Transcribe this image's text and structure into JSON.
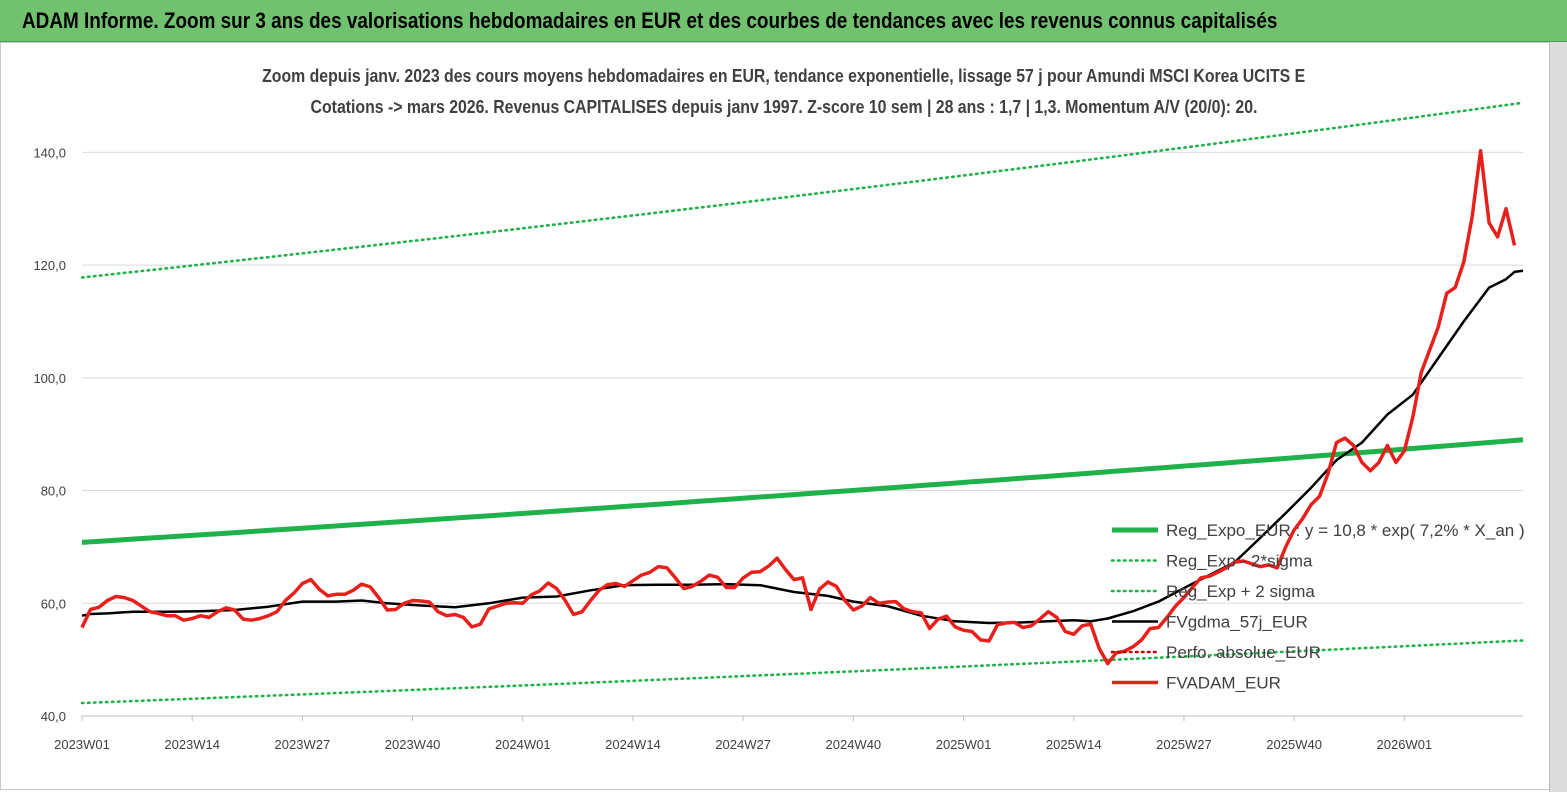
{
  "header": {
    "banner_title": "ADAM Informe. Zoom sur 3 ans des valorisations hebdomadaires en EUR et des courbes de tendances avec les revenus connus capitalisés"
  },
  "chart_data": {
    "type": "line",
    "title_line1": "Zoom depuis janv. 2023 des cours moyens hebdomadaires en EUR, tendance exponentielle, lissage 57 j pour Amundi MSCI Korea UCITS E",
    "title_line2": "Cotations -> mars 2026. Revenus CAPITALISES depuis janv 1997. Z-score 10 sem | 28 ans : 1,7 | 1,3. Momentum A/V (20/0): 20.",
    "x_tick_labels": [
      "2023W01",
      "2023W14",
      "2023W27",
      "2023W40",
      "2024W01",
      "2024W14",
      "2024W27",
      "2024W40",
      "2025W01",
      "2025W14",
      "2025W27",
      "2025W40",
      "2026W01"
    ],
    "x_tick_index": [
      0,
      13,
      26,
      39,
      52,
      65,
      78,
      91,
      104,
      117,
      130,
      143,
      156
    ],
    "n_points": 170,
    "ylim": [
      40,
      150
    ],
    "y_ticks": [
      40,
      60,
      80,
      100,
      120,
      140
    ],
    "y_tick_labels": [
      "40,0",
      "60,0",
      "80,0",
      "100,0",
      "120,0",
      "140,0"
    ],
    "grid": "horizontal",
    "legend_position": "right",
    "series": [
      {
        "name": "Reg_Expo_EUR : y = 10,8 * exp( 7,2% *  X_an )",
        "style": "solid",
        "color": "#1fb24a",
        "start": 70.8,
        "end": 89.0
      },
      {
        "name": "Reg_Exp - 2*sigma",
        "style": "dotted",
        "color": "#1fb24a",
        "start": 42.3,
        "end": 53.4
      },
      {
        "name": "Reg_Exp + 2 sigma",
        "style": "dotted",
        "color": "#1fb24a",
        "start": 117.8,
        "end": 148.8
      },
      {
        "name": "FVgdma_57j_EUR",
        "style": "solid",
        "color": "#000000",
        "points": [
          [
            0,
            57.8
          ],
          [
            1,
            58.1
          ],
          [
            3,
            58.2
          ],
          [
            6,
            58.5
          ],
          [
            10,
            58.5
          ],
          [
            14,
            58.6
          ],
          [
            18,
            58.8
          ],
          [
            22,
            59.4
          ],
          [
            26,
            60.3
          ],
          [
            30,
            60.3
          ],
          [
            33,
            60.5
          ],
          [
            36,
            60.0
          ],
          [
            40,
            59.6
          ],
          [
            44,
            59.3
          ],
          [
            48,
            60.0
          ],
          [
            52,
            61.0
          ],
          [
            56,
            61.2
          ],
          [
            60,
            62.3
          ],
          [
            64,
            63.2
          ],
          [
            68,
            63.3
          ],
          [
            72,
            63.3
          ],
          [
            76,
            63.4
          ],
          [
            80,
            63.2
          ],
          [
            84,
            62.0
          ],
          [
            88,
            61.3
          ],
          [
            91,
            60.3
          ],
          [
            95,
            59.5
          ],
          [
            99,
            57.8
          ],
          [
            103,
            56.8
          ],
          [
            107,
            56.5
          ],
          [
            111,
            56.6
          ],
          [
            114,
            56.8
          ],
          [
            117,
            57.0
          ],
          [
            119,
            56.8
          ],
          [
            121,
            57.3
          ],
          [
            124,
            58.6
          ],
          [
            127,
            60.3
          ],
          [
            130,
            62.7
          ],
          [
            133,
            65.0
          ],
          [
            136,
            67.3
          ],
          [
            139,
            71.6
          ],
          [
            142,
            76.0
          ],
          [
            145,
            80.5
          ],
          [
            148,
            85.4
          ],
          [
            151,
            88.5
          ],
          [
            154,
            93.5
          ],
          [
            157,
            97.0
          ],
          [
            160,
            103.5
          ],
          [
            163,
            110.0
          ],
          [
            166,
            116.0
          ],
          [
            168,
            117.5
          ],
          [
            169,
            118.8
          ],
          [
            170,
            119.0
          ]
        ]
      },
      {
        "name": "Perfo. absolue_EUR",
        "style": "dotted",
        "color": "#c00000",
        "points": []
      },
      {
        "name": "FVADAM_EUR",
        "style": "solid",
        "color": "#e8201c",
        "points": [
          [
            0,
            55.7
          ],
          [
            1,
            58.9
          ],
          [
            2,
            59.3
          ],
          [
            3,
            60.5
          ],
          [
            4,
            61.2
          ],
          [
            5,
            61.0
          ],
          [
            6,
            60.5
          ],
          [
            7,
            59.5
          ],
          [
            8,
            58.5
          ],
          [
            9,
            58.2
          ],
          [
            10,
            57.8
          ],
          [
            11,
            57.8
          ],
          [
            12,
            57.0
          ],
          [
            13,
            57.3
          ],
          [
            14,
            57.8
          ],
          [
            15,
            57.5
          ],
          [
            16,
            58.5
          ],
          [
            17,
            59.2
          ],
          [
            18,
            58.8
          ],
          [
            19,
            57.2
          ],
          [
            20,
            57.0
          ],
          [
            21,
            57.3
          ],
          [
            22,
            57.8
          ],
          [
            23,
            58.5
          ],
          [
            24,
            60.5
          ],
          [
            25,
            61.8
          ],
          [
            26,
            63.5
          ],
          [
            27,
            64.2
          ],
          [
            28,
            62.5
          ],
          [
            29,
            61.3
          ],
          [
            30,
            61.6
          ],
          [
            31,
            61.6
          ],
          [
            32,
            62.3
          ],
          [
            33,
            63.4
          ],
          [
            34,
            62.9
          ],
          [
            35,
            61.0
          ],
          [
            36,
            58.8
          ],
          [
            37,
            58.9
          ],
          [
            38,
            60.0
          ],
          [
            39,
            60.5
          ],
          [
            40,
            60.4
          ],
          [
            41,
            60.2
          ],
          [
            42,
            58.5
          ],
          [
            43,
            57.8
          ],
          [
            44,
            58.0
          ],
          [
            45,
            57.5
          ],
          [
            46,
            55.8
          ],
          [
            47,
            56.3
          ],
          [
            48,
            59.0
          ],
          [
            49,
            59.5
          ],
          [
            50,
            60.0
          ],
          [
            51,
            60.1
          ],
          [
            52,
            60.0
          ],
          [
            53,
            61.5
          ],
          [
            54,
            62.2
          ],
          [
            55,
            63.6
          ],
          [
            56,
            62.6
          ],
          [
            57,
            60.5
          ],
          [
            58,
            58.0
          ],
          [
            59,
            58.5
          ],
          [
            60,
            60.5
          ],
          [
            61,
            62.3
          ],
          [
            62,
            63.3
          ],
          [
            63,
            63.5
          ],
          [
            64,
            63.0
          ],
          [
            65,
            64.0
          ],
          [
            66,
            65.0
          ],
          [
            67,
            65.5
          ],
          [
            68,
            66.5
          ],
          [
            69,
            66.3
          ],
          [
            70,
            64.5
          ],
          [
            71,
            62.6
          ],
          [
            72,
            63.0
          ],
          [
            73,
            63.9
          ],
          [
            74,
            65.0
          ],
          [
            75,
            64.6
          ],
          [
            76,
            62.8
          ],
          [
            77,
            62.8
          ],
          [
            78,
            64.5
          ],
          [
            79,
            65.5
          ],
          [
            80,
            65.6
          ],
          [
            81,
            66.6
          ],
          [
            82,
            68.0
          ],
          [
            83,
            66.0
          ],
          [
            84,
            64.2
          ],
          [
            85,
            64.5
          ],
          [
            86,
            58.9
          ],
          [
            87,
            62.5
          ],
          [
            88,
            63.8
          ],
          [
            89,
            63.0
          ],
          [
            90,
            60.5
          ],
          [
            91,
            58.8
          ],
          [
            92,
            59.5
          ],
          [
            93,
            61.0
          ],
          [
            94,
            60.0
          ],
          [
            95,
            60.2
          ],
          [
            96,
            60.3
          ],
          [
            97,
            59.0
          ],
          [
            98,
            58.5
          ],
          [
            99,
            58.3
          ],
          [
            100,
            55.5
          ],
          [
            101,
            57.2
          ],
          [
            102,
            57.7
          ],
          [
            103,
            55.8
          ],
          [
            104,
            55.2
          ],
          [
            105,
            55.0
          ],
          [
            106,
            53.5
          ],
          [
            107,
            53.3
          ],
          [
            108,
            56.2
          ],
          [
            109,
            56.5
          ],
          [
            110,
            56.6
          ],
          [
            111,
            55.7
          ],
          [
            112,
            56.0
          ],
          [
            113,
            57.2
          ],
          [
            114,
            58.5
          ],
          [
            115,
            57.5
          ],
          [
            116,
            55.0
          ],
          [
            117,
            54.5
          ],
          [
            118,
            56.0
          ],
          [
            119,
            56.3
          ],
          [
            120,
            52.0
          ],
          [
            121,
            49.3
          ],
          [
            122,
            51.2
          ],
          [
            123,
            51.5
          ],
          [
            124,
            52.3
          ],
          [
            125,
            53.5
          ],
          [
            126,
            55.5
          ],
          [
            127,
            55.7
          ],
          [
            128,
            57.5
          ],
          [
            129,
            59.5
          ],
          [
            130,
            61.0
          ],
          [
            131,
            62.8
          ],
          [
            132,
            64.5
          ],
          [
            133,
            64.8
          ],
          [
            134,
            65.5
          ],
          [
            135,
            66.3
          ],
          [
            136,
            67.3
          ],
          [
            137,
            67.5
          ],
          [
            138,
            67.0
          ],
          [
            139,
            66.5
          ],
          [
            140,
            66.8
          ],
          [
            141,
            66.3
          ],
          [
            142,
            70.0
          ],
          [
            143,
            73.0
          ],
          [
            144,
            75.0
          ],
          [
            145,
            77.5
          ],
          [
            146,
            79.0
          ],
          [
            147,
            83.0
          ],
          [
            148,
            88.5
          ],
          [
            149,
            89.3
          ],
          [
            150,
            88.0
          ],
          [
            151,
            85.0
          ],
          [
            152,
            83.5
          ],
          [
            153,
            85.0
          ],
          [
            154,
            88.0
          ],
          [
            155,
            85.0
          ],
          [
            156,
            87.0
          ],
          [
            157,
            93.0
          ],
          [
            158,
            101.0
          ],
          [
            159,
            105.0
          ],
          [
            160,
            109.0
          ],
          [
            161,
            115.0
          ],
          [
            162,
            116.0
          ],
          [
            163,
            120.5
          ],
          [
            164,
            128.5
          ],
          [
            165,
            140.3
          ],
          [
            166,
            127.5
          ],
          [
            167,
            125.0
          ],
          [
            168,
            130.0
          ],
          [
            169,
            123.5
          ]
        ]
      }
    ]
  }
}
